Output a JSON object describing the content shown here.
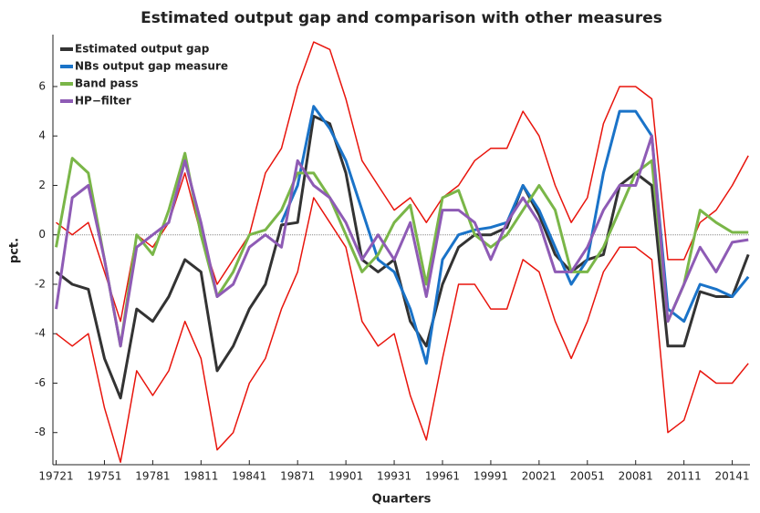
{
  "chart_data": {
    "type": "line",
    "title": "Estimated output gap and comparison with other measures",
    "xlabel": "Quarters",
    "ylabel": "pct.",
    "x": [
      1972,
      1973,
      1974,
      1975,
      1976,
      1977,
      1978,
      1979,
      1980,
      1981,
      1982,
      1983,
      1984,
      1985,
      1986,
      1987,
      1988,
      1989,
      1990,
      1991,
      1992,
      1993,
      1994,
      1995,
      1996,
      1997,
      1998,
      1999,
      2000,
      2001,
      2002,
      2003,
      2004,
      2005,
      2006,
      2007,
      2008,
      2009,
      2010,
      2011,
      2012,
      2013,
      2014,
      2015
    ],
    "series": [
      {
        "color": "#e8140c",
        "values": [
          0.5,
          0,
          0.5,
          -1.5,
          -3.5,
          0,
          -0.5,
          0.5,
          2.5,
          0,
          -2,
          -1,
          0,
          2.5,
          3.5,
          6,
          7.8,
          7.5,
          5.5,
          3,
          2,
          1,
          1.5,
          0.5,
          1.5,
          2,
          3,
          3.5,
          3.5,
          5,
          4,
          2,
          0.5,
          1.5,
          4.5,
          6,
          6,
          5.5,
          -1,
          -1,
          0.5,
          1,
          2,
          3.2
        ]
      },
      {
        "color": "#e8140c",
        "values": [
          -4,
          -4.5,
          -4,
          -7,
          -9.2,
          -5.5,
          -6.5,
          -5.5,
          -3.5,
          -5,
          -8.7,
          -8,
          -6,
          -5,
          -3,
          -1.5,
          1.5,
          0.5,
          -0.5,
          -3.5,
          -4.5,
          -4,
          -6.5,
          -8.3,
          -5,
          -2,
          -2,
          -3,
          -3,
          -1,
          -1.5,
          -3.5,
          -5,
          -3.5,
          -1.5,
          -0.5,
          -0.5,
          -1,
          -8,
          -7.5,
          -5.5,
          -6,
          -6,
          -5.2
        ]
      },
      {
        "name": "Estimated output gap",
        "color": "#333333",
        "values": [
          -1.5,
          -2,
          -2.2,
          -5,
          -6.6,
          -3,
          -3.5,
          -2.5,
          -1,
          -1.5,
          -5.5,
          -4.5,
          -3,
          -2,
          0.4,
          0.5,
          4.8,
          4.5,
          2.5,
          -1,
          -1.5,
          -1,
          -3.5,
          -4.5,
          -2,
          -0.5,
          0,
          0,
          0.3,
          2,
          0.8,
          -0.8,
          -1.5,
          -1,
          -0.8,
          2,
          2.5,
          2,
          -4.5,
          -4.5,
          -2.3,
          -2.5,
          -2.5,
          -0.8
        ]
      },
      {
        "name": "NBs output gap measure",
        "color": "#1a73c8",
        "values": [
          null,
          null,
          null,
          null,
          null,
          null,
          null,
          null,
          null,
          null,
          null,
          null,
          null,
          null,
          0.5,
          2,
          5.2,
          4.3,
          3,
          1,
          -1,
          -1.5,
          -3,
          -5.2,
          -1,
          0,
          0.2,
          0.3,
          0.5,
          2,
          1,
          -0.5,
          -2,
          -1,
          2.5,
          5,
          5,
          4,
          -3,
          -3.5,
          -2,
          -2.2,
          -2.5,
          -1.7
        ]
      },
      {
        "name": "Band pass",
        "color": "#7ab648",
        "values": [
          -0.5,
          3.1,
          2.5,
          -1,
          -4.5,
          0,
          -0.8,
          1,
          3.3,
          0,
          -2.5,
          -1.5,
          0,
          0.2,
          1,
          2.5,
          2.5,
          1.5,
          0,
          -1.5,
          -0.8,
          0.5,
          1.2,
          -2,
          1.5,
          1.8,
          0,
          -0.5,
          0,
          1,
          2,
          1,
          -1.5,
          -1.5,
          -0.5,
          1,
          2.5,
          3,
          -3.5,
          -2,
          1,
          0.5,
          0.1,
          0.1
        ]
      },
      {
        "name": "HP−filter",
        "color": "#8e5bb5",
        "values": [
          -3,
          1.5,
          2,
          -1,
          -4.5,
          -0.5,
          0,
          0.5,
          3,
          0.5,
          -2.5,
          -2,
          -0.5,
          0,
          -0.5,
          3,
          2,
          1.5,
          0.5,
          -1,
          0,
          -1,
          0.5,
          -2.5,
          1,
          1,
          0.5,
          -1,
          0.5,
          1.5,
          0.5,
          -1.5,
          -1.5,
          -0.5,
          1,
          2,
          2,
          4,
          -3.5,
          -2,
          -0.5,
          -1.5,
          -0.3,
          -0.2
        ]
      }
    ],
    "xlim": [
      1971.8,
      2015.1
    ],
    "ylim": [
      -9.3,
      8.1
    ],
    "xticks": [
      {
        "value": 1972,
        "label": "19721"
      },
      {
        "value": 1975,
        "label": "19751"
      },
      {
        "value": 1978,
        "label": "19781"
      },
      {
        "value": 1981,
        "label": "19811"
      },
      {
        "value": 1984,
        "label": "19841"
      },
      {
        "value": 1987,
        "label": "19871"
      },
      {
        "value": 1990,
        "label": "19901"
      },
      {
        "value": 1993,
        "label": "19931"
      },
      {
        "value": 1996,
        "label": "19961"
      },
      {
        "value": 1999,
        "label": "19991"
      },
      {
        "value": 2002,
        "label": "20021"
      },
      {
        "value": 2005,
        "label": "20051"
      },
      {
        "value": 2008,
        "label": "20081"
      },
      {
        "value": 2011,
        "label": "20111"
      },
      {
        "value": 2014,
        "label": "20141"
      }
    ],
    "yticks": [
      -8,
      -6,
      -4,
      -2,
      0,
      2,
      4,
      6
    ],
    "legend": "upper-left"
  }
}
